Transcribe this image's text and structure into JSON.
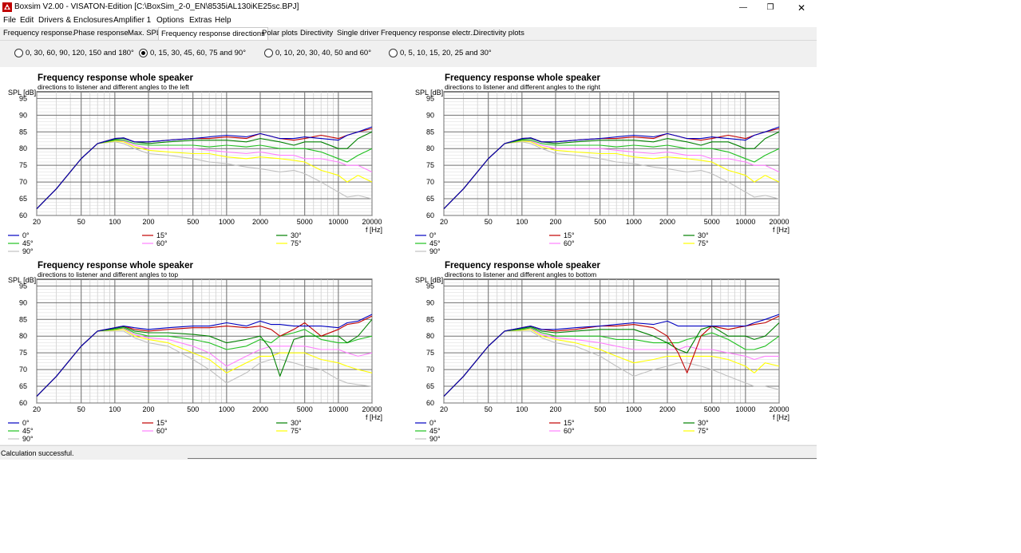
{
  "window": {
    "title": "Boxsim V2.00 - VISATON-Edition [C:\\BoxSim_2-0_EN\\8535iAL130iKE25sc.BPJ]",
    "minimize": "—",
    "maximize": "❐",
    "close": "✕"
  },
  "menu": [
    "File",
    "Edit",
    "Drivers & Enclosures",
    "Amplifier 1",
    "Options",
    "Extras",
    "Help"
  ],
  "tabs": [
    {
      "label": "Frequency response.",
      "active": false
    },
    {
      "label": "Phase response",
      "active": false
    },
    {
      "label": "Max. SPL",
      "active": false
    },
    {
      "label": "Frequency response directions",
      "active": true
    },
    {
      "label": "Polar plots",
      "active": false
    },
    {
      "label": "Directivity",
      "active": false
    },
    {
      "label": "Single driver",
      "active": false
    },
    {
      "label": "Frequency response electr..",
      "active": false
    },
    {
      "label": "Directivity plots",
      "active": false
    }
  ],
  "radios": [
    {
      "label": "0, 30, 60, 90, 120, 150 and 180°",
      "selected": false
    },
    {
      "label": "0, 15, 30, 45, 60, 75 and 90°",
      "selected": true
    },
    {
      "label": "0, 10, 20, 30, 40, 50 and 60°",
      "selected": false
    },
    {
      "label": "0, 5, 10, 15, 20, 25 and 30°",
      "selected": false
    }
  ],
  "status": "Calculation successful.",
  "chart_data": [
    {
      "type": "line",
      "title": "Frequency response whole speaker",
      "subtitle": "directions to listener and different angles to the left",
      "ylabel": "SPL [dB]",
      "xlabel": "f [Hz]",
      "xscale": "log",
      "xlim": [
        20,
        20000
      ],
      "ylim": [
        60,
        97
      ],
      "xticks": [
        20,
        50,
        100,
        200,
        500,
        1000,
        2000,
        5000,
        10000,
        20000
      ],
      "yticks": [
        60,
        65,
        70,
        75,
        80,
        85,
        90,
        95
      ],
      "grid": true,
      "legend": "bottom",
      "x": [
        20,
        30,
        50,
        70,
        100,
        120,
        150,
        200,
        300,
        500,
        700,
        1000,
        1500,
        2000,
        3000,
        4000,
        5000,
        7000,
        10000,
        12000,
        15000,
        20000
      ],
      "series": [
        {
          "name": "0°",
          "color": "#0000c0",
          "values": [
            62,
            68,
            77,
            81.5,
            83,
            83.2,
            82,
            82,
            82.5,
            83,
            83.5,
            84,
            83.5,
            84.5,
            83,
            83,
            83.5,
            83,
            82.5,
            84,
            85,
            86.5
          ]
        },
        {
          "name": "15°",
          "color": "#c00000",
          "values": [
            62,
            68,
            77,
            81.5,
            83,
            83.2,
            82,
            82,
            82.5,
            83,
            83,
            83.5,
            83,
            84.5,
            83,
            82.5,
            83,
            84,
            83,
            84,
            85,
            86
          ]
        },
        {
          "name": "30°",
          "color": "#008000",
          "values": [
            62,
            68,
            77,
            81.5,
            82.8,
            83,
            82,
            81.5,
            82,
            82.5,
            82.5,
            82.5,
            82,
            83,
            82,
            81,
            82,
            82,
            80,
            80,
            83,
            85
          ]
        },
        {
          "name": "45°",
          "color": "#20c020",
          "values": [
            62,
            68,
            77,
            81.5,
            82.5,
            82.5,
            81.5,
            81,
            81,
            81,
            80.5,
            81,
            80.5,
            81,
            80,
            80,
            80,
            79,
            77,
            76,
            78,
            80
          ]
        },
        {
          "name": "60°",
          "color": "#ff80ff",
          "values": [
            62,
            68,
            77,
            81.5,
            82.5,
            82.3,
            81,
            80,
            80,
            80,
            79.5,
            79,
            78.5,
            79,
            78,
            78,
            77,
            77,
            76,
            75,
            75,
            73
          ]
        },
        {
          "name": "75°",
          "color": "#ffff00",
          "values": [
            62,
            68,
            77,
            81.5,
            82.3,
            82,
            80.5,
            79.5,
            79,
            78.5,
            78.5,
            77.5,
            77,
            77.5,
            77,
            76.5,
            76,
            73.5,
            72,
            70,
            72,
            70
          ]
        },
        {
          "name": "90°",
          "color": "#c0c0c0",
          "values": [
            62,
            68,
            77,
            81.5,
            82,
            81.5,
            80,
            78.5,
            78,
            77,
            76,
            75.5,
            74.5,
            74,
            73,
            73.5,
            72.5,
            70,
            67,
            65.5,
            66,
            65
          ]
        }
      ]
    },
    {
      "type": "line",
      "title": "Frequency response whole speaker",
      "subtitle": "directions to listener and different angles to the right",
      "ylabel": "SPL [dB]",
      "xlabel": "f [Hz]",
      "xscale": "log",
      "xlim": [
        20,
        20000
      ],
      "ylim": [
        60,
        97
      ],
      "xticks": [
        20,
        50,
        100,
        200,
        500,
        1000,
        2000,
        5000,
        10000,
        20000
      ],
      "yticks": [
        60,
        65,
        70,
        75,
        80,
        85,
        90,
        95
      ],
      "grid": true,
      "legend": "bottom",
      "x": [
        20,
        30,
        50,
        70,
        100,
        120,
        150,
        200,
        300,
        500,
        700,
        1000,
        1500,
        2000,
        3000,
        4000,
        5000,
        7000,
        10000,
        12000,
        15000,
        20000
      ],
      "series": [
        {
          "name": "0°",
          "color": "#0000c0",
          "values": [
            62,
            68,
            77,
            81.5,
            83,
            83.2,
            82,
            82,
            82.5,
            83,
            83.5,
            84,
            83.5,
            84.5,
            83,
            83,
            83.5,
            83,
            82.5,
            84,
            85,
            86.5
          ]
        },
        {
          "name": "15°",
          "color": "#c00000",
          "values": [
            62,
            68,
            77,
            81.5,
            83,
            83.2,
            82,
            82,
            82.5,
            83,
            83,
            83.5,
            83,
            84.5,
            83,
            82.5,
            83,
            84,
            83,
            84,
            85,
            86
          ]
        },
        {
          "name": "30°",
          "color": "#008000",
          "values": [
            62,
            68,
            77,
            81.5,
            82.8,
            83,
            82,
            81.5,
            82,
            82.5,
            82.5,
            82.5,
            82,
            83,
            82,
            81,
            82,
            82,
            80,
            80,
            83,
            85
          ]
        },
        {
          "name": "45°",
          "color": "#20c020",
          "values": [
            62,
            68,
            77,
            81.5,
            82.5,
            82.5,
            81.5,
            81,
            81,
            81,
            80.5,
            81,
            80.5,
            81,
            80,
            80,
            80,
            79,
            77,
            76,
            78,
            80
          ]
        },
        {
          "name": "60°",
          "color": "#ff80ff",
          "values": [
            62,
            68,
            77,
            81.5,
            82.5,
            82.3,
            81,
            80,
            80,
            80,
            79.5,
            79,
            78.5,
            79,
            78,
            78,
            77,
            77,
            76,
            75,
            75,
            73
          ]
        },
        {
          "name": "75°",
          "color": "#ffff00",
          "values": [
            62,
            68,
            77,
            81.5,
            82.3,
            82,
            80.5,
            79.5,
            79,
            78.5,
            78.5,
            77.5,
            77,
            77.5,
            77,
            76.5,
            76,
            73.5,
            72,
            70,
            72,
            70
          ]
        },
        {
          "name": "90°",
          "color": "#c0c0c0",
          "values": [
            62,
            68,
            77,
            81.5,
            82,
            81.5,
            80,
            78.5,
            78,
            77,
            76,
            75.5,
            74.5,
            74,
            73,
            73.5,
            72.5,
            70,
            67,
            65.5,
            66,
            65
          ]
        }
      ]
    },
    {
      "type": "line",
      "title": "Frequency response whole speaker",
      "subtitle": "directions to listener and different angles to top",
      "ylabel": "SPL [dB]",
      "xlabel": "f [Hz]",
      "xscale": "log",
      "xlim": [
        20,
        20000
      ],
      "ylim": [
        60,
        97
      ],
      "xticks": [
        20,
        50,
        100,
        200,
        500,
        1000,
        2000,
        5000,
        10000,
        20000
      ],
      "yticks": [
        60,
        65,
        70,
        75,
        80,
        85,
        90,
        95
      ],
      "grid": true,
      "legend": "bottom",
      "x": [
        20,
        30,
        50,
        70,
        100,
        120,
        150,
        200,
        300,
        500,
        700,
        1000,
        1500,
        2000,
        2500,
        3000,
        4000,
        5000,
        7000,
        10000,
        12000,
        15000,
        20000
      ],
      "series": [
        {
          "name": "0°",
          "color": "#0000c0",
          "values": [
            62,
            68,
            77,
            81.5,
            82.5,
            83,
            82.5,
            82,
            82.5,
            83,
            83,
            84,
            83,
            84.5,
            83.5,
            83.5,
            83,
            83,
            83,
            82.5,
            84,
            84.5,
            86.5
          ]
        },
        {
          "name": "15°",
          "color": "#c00000",
          "values": [
            62,
            68,
            77,
            81.5,
            82.5,
            83,
            82,
            81.5,
            82,
            82.5,
            82.5,
            83,
            82.5,
            83,
            82,
            80,
            82,
            84,
            80,
            82,
            83.5,
            84,
            86
          ]
        },
        {
          "name": "30°",
          "color": "#008000",
          "values": [
            62,
            68,
            77,
            81.5,
            82.3,
            82.8,
            81.5,
            81,
            81,
            80.5,
            80,
            78,
            79,
            80,
            76,
            68,
            79,
            80,
            80,
            80,
            78,
            80,
            85
          ]
        },
        {
          "name": "45°",
          "color": "#20c020",
          "values": [
            62,
            68,
            77,
            81.5,
            82,
            82.5,
            81,
            80,
            80,
            79,
            78,
            76,
            77,
            79,
            78,
            80,
            81,
            82,
            79,
            78,
            78,
            79,
            80
          ]
        },
        {
          "name": "60°",
          "color": "#ff80ff",
          "values": [
            62,
            68,
            77,
            81.5,
            82,
            82.3,
            80.5,
            79.5,
            79,
            77,
            75,
            71,
            74,
            76,
            77,
            77,
            77,
            77,
            76,
            76,
            75,
            74,
            75
          ]
        },
        {
          "name": "75°",
          "color": "#ffff00",
          "values": [
            62,
            68,
            77,
            81.5,
            81.8,
            82,
            80,
            79,
            78,
            75,
            73,
            69,
            72,
            74,
            74,
            75,
            75,
            75,
            73,
            72,
            71,
            70,
            69
          ]
        },
        {
          "name": "90°",
          "color": "#c0c0c0",
          "values": [
            62,
            68,
            77,
            81.5,
            81.5,
            81.5,
            79.5,
            78,
            77,
            73,
            70,
            66,
            69,
            72,
            73,
            73,
            72,
            71,
            70,
            67,
            66,
            65.5,
            65
          ]
        }
      ]
    },
    {
      "type": "line",
      "title": "Frequency response whole speaker",
      "subtitle": "directions to listener and different angles to bottom",
      "ylabel": "SPL [dB]",
      "xlabel": "f [Hz]",
      "xscale": "log",
      "xlim": [
        20,
        20000
      ],
      "ylim": [
        60,
        97
      ],
      "xticks": [
        20,
        50,
        100,
        200,
        500,
        1000,
        2000,
        5000,
        10000,
        20000
      ],
      "yticks": [
        60,
        65,
        70,
        75,
        80,
        85,
        90,
        95
      ],
      "grid": true,
      "legend": "bottom",
      "x": [
        20,
        30,
        50,
        70,
        100,
        120,
        150,
        200,
        300,
        500,
        700,
        1000,
        1500,
        2000,
        2500,
        3000,
        4000,
        5000,
        7000,
        10000,
        12000,
        15000,
        20000
      ],
      "series": [
        {
          "name": "0°",
          "color": "#0000c0",
          "values": [
            62,
            68,
            77,
            81.5,
            82.5,
            83,
            82,
            82,
            82.5,
            83,
            83.5,
            84,
            83.5,
            84.5,
            83,
            83,
            83,
            83,
            83,
            83,
            84,
            85,
            86.5
          ]
        },
        {
          "name": "15°",
          "color": "#c00000",
          "values": [
            62,
            68,
            77,
            81.5,
            82.5,
            83,
            82,
            81.5,
            82,
            83,
            83,
            83.5,
            82.5,
            80,
            75,
            69,
            80,
            83,
            82,
            83,
            83.5,
            84,
            86
          ]
        },
        {
          "name": "30°",
          "color": "#008000",
          "values": [
            62,
            68,
            77,
            81.5,
            82.3,
            82.8,
            81.5,
            81,
            81.5,
            82,
            82,
            82,
            80,
            78,
            76,
            75,
            82,
            83,
            80,
            80,
            79,
            80,
            84
          ]
        },
        {
          "name": "45°",
          "color": "#20c020",
          "values": [
            62,
            68,
            77,
            81.5,
            82,
            82.5,
            81,
            80,
            80,
            80,
            79,
            79,
            78,
            78,
            78,
            79,
            80,
            81,
            79,
            76,
            76,
            77,
            80
          ]
        },
        {
          "name": "60°",
          "color": "#ff80ff",
          "values": [
            62,
            68,
            77,
            81.5,
            82,
            82.3,
            80.5,
            79.5,
            79,
            78,
            77,
            76,
            76,
            76,
            76,
            77,
            76,
            76,
            75,
            74,
            73,
            74,
            74
          ]
        },
        {
          "name": "75°",
          "color": "#ffff00",
          "values": [
            62,
            68,
            77,
            81.5,
            81.8,
            82,
            80,
            79,
            78,
            76,
            74,
            72,
            73,
            74,
            74,
            74,
            74,
            74,
            73,
            71,
            69,
            72,
            71
          ]
        },
        {
          "name": "90°",
          "color": "#c0c0c0",
          "values": [
            62,
            68,
            77,
            81.5,
            81.5,
            81.5,
            79.5,
            78,
            77,
            74,
            71,
            68,
            70,
            71,
            72,
            72,
            71,
            70,
            68,
            66,
            65,
            65,
            64
          ]
        }
      ]
    }
  ]
}
